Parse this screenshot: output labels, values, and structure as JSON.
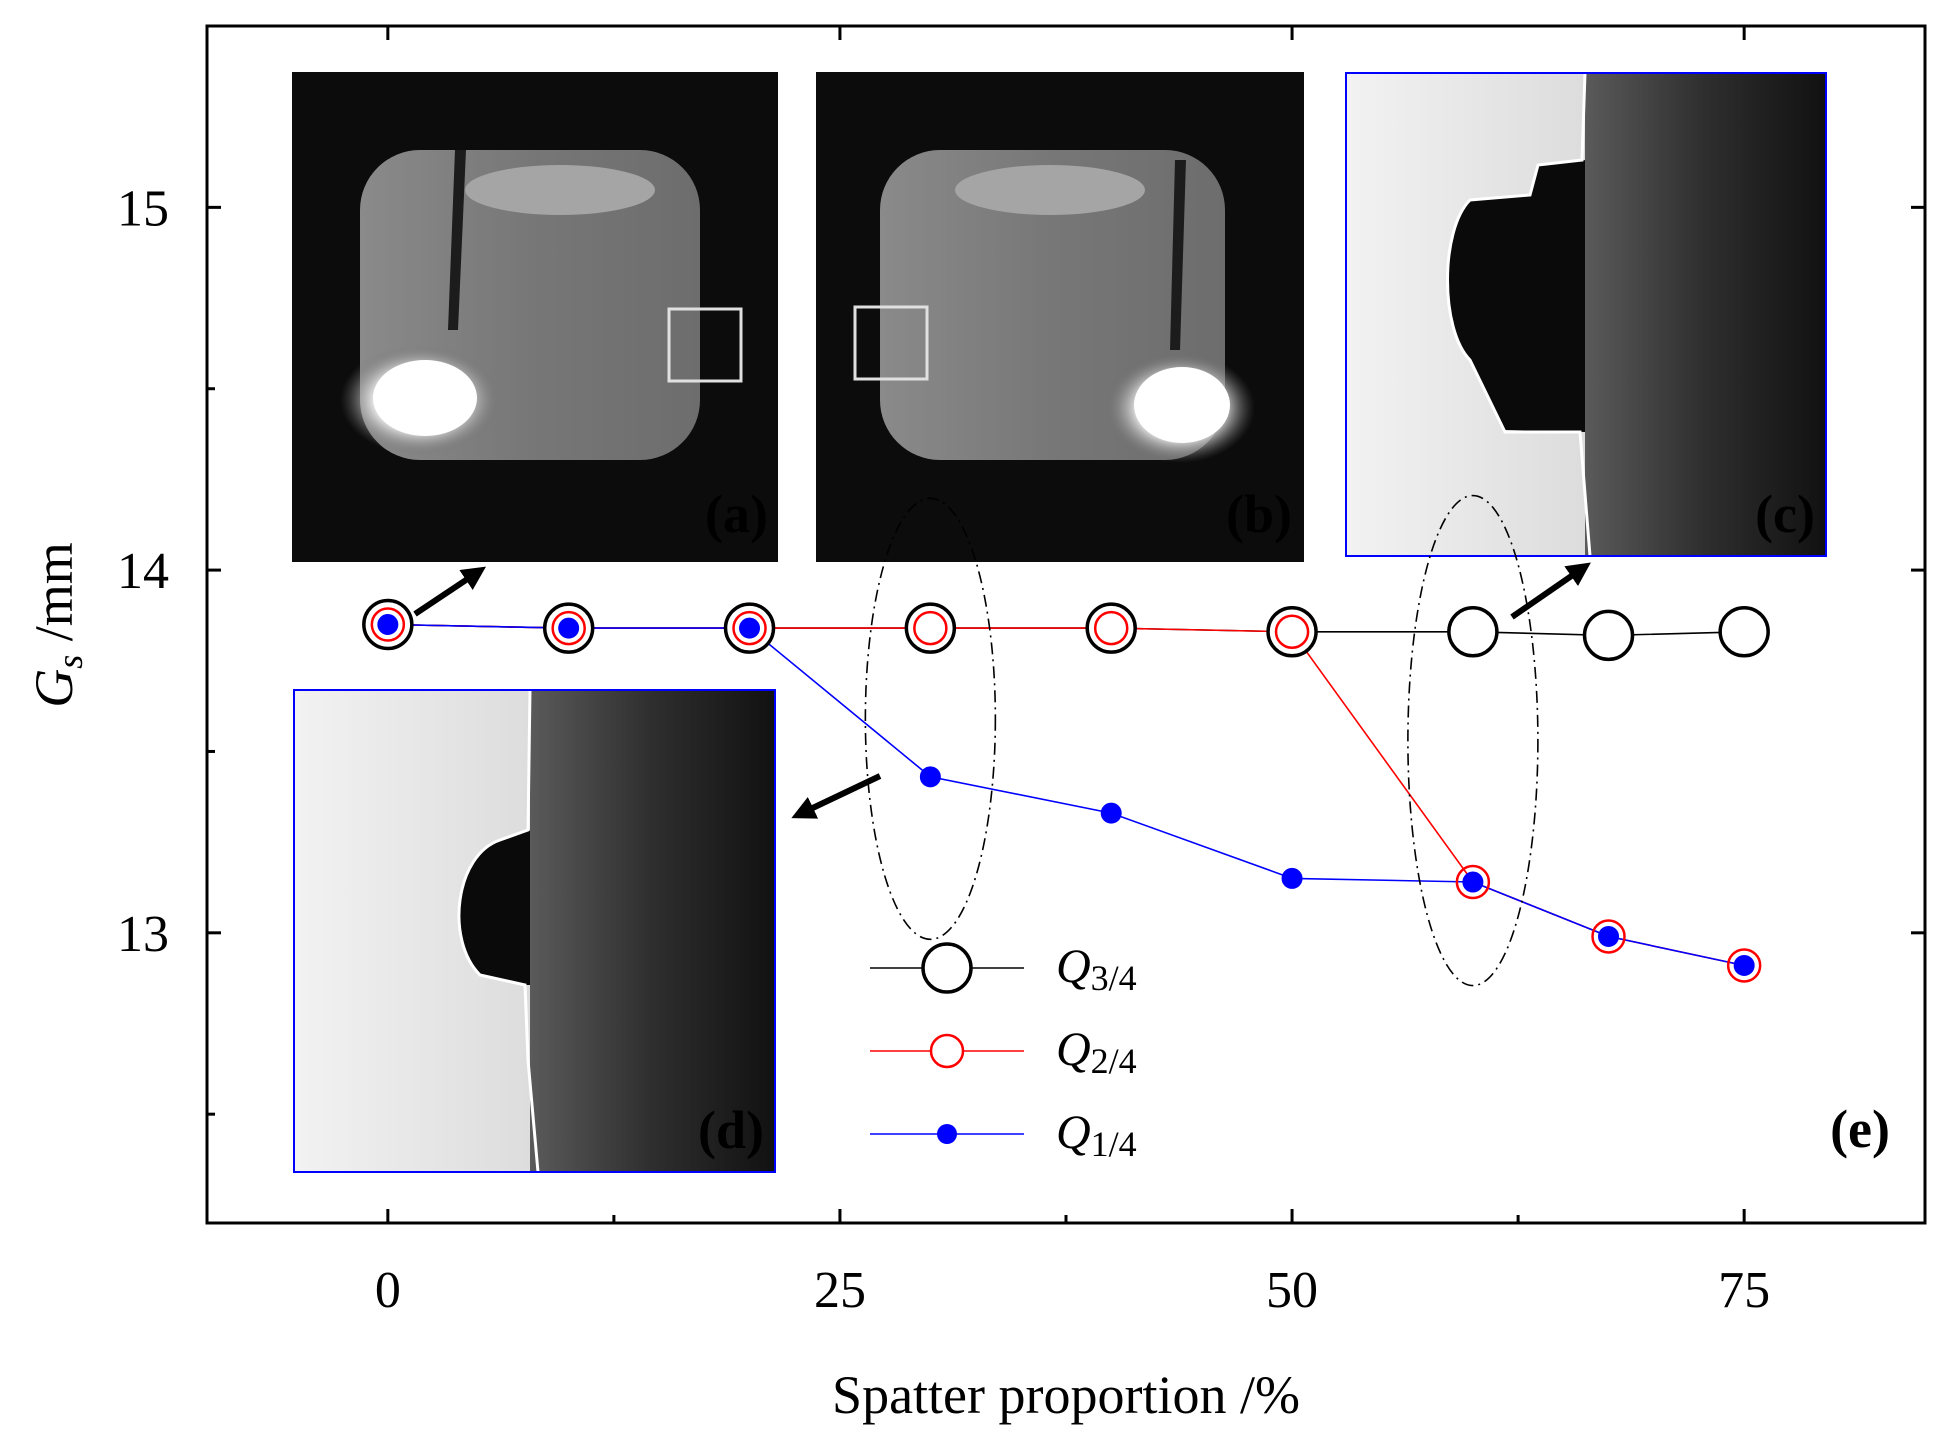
{
  "chart_data": {
    "type": "line",
    "xlabel": "Spatter proportion /%",
    "ylabel_main": "G",
    "ylabel_sub": "s",
    "ylabel_unit": " /mm",
    "xlim": [
      -10,
      85
    ],
    "ylim": [
      12.2,
      15.5
    ],
    "xticks": [
      0,
      25,
      50,
      75
    ],
    "yticks": [
      13,
      14,
      15
    ],
    "series": [
      {
        "name": "Q3/4",
        "legend_main": "Q",
        "legend_sub": "3/4",
        "color": "#000000",
        "marker": "open-circle-large",
        "x": [
          0,
          10,
          20,
          30,
          40,
          50,
          60,
          67.5,
          75
        ],
        "y": [
          13.85,
          13.84,
          13.84,
          13.84,
          13.84,
          13.83,
          13.83,
          13.82,
          13.83
        ]
      },
      {
        "name": "Q2/4",
        "legend_main": "Q",
        "legend_sub": "2/4",
        "color": "#ff0000",
        "marker": "open-circle",
        "x": [
          0,
          10,
          20,
          30,
          40,
          50,
          60,
          67.5,
          75
        ],
        "y": [
          13.85,
          13.84,
          13.84,
          13.84,
          13.84,
          13.83,
          13.14,
          12.99,
          12.91
        ]
      },
      {
        "name": "Q1/4",
        "legend_main": "Q",
        "legend_sub": "1/4",
        "color": "#0000ff",
        "marker": "filled-circle",
        "x": [
          0,
          10,
          20,
          30,
          40,
          50,
          60,
          67.5,
          75
        ],
        "y": [
          13.85,
          13.84,
          13.84,
          13.43,
          13.33,
          13.15,
          13.14,
          12.99,
          12.91
        ]
      }
    ],
    "legend_position": "bottom-center",
    "grid": false,
    "panel_labels": [
      "(a)",
      "(b)",
      "(c)",
      "(d)",
      "(e)"
    ],
    "highlights": [
      {
        "x": 30,
        "y": 13.59
      },
      {
        "x": 60,
        "y": 13.53
      }
    ]
  }
}
